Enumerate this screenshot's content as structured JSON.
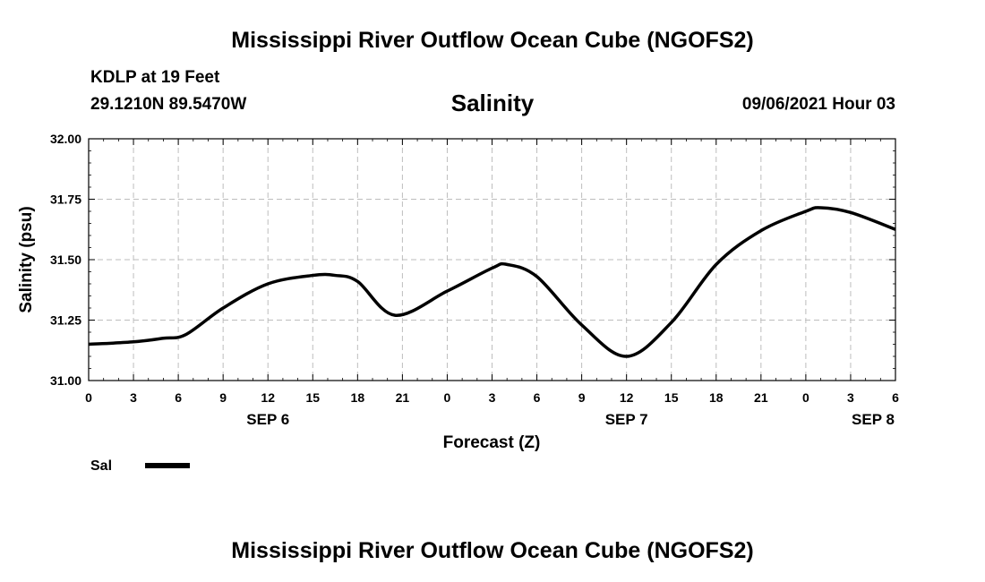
{
  "title_top": "Mississippi River Outflow Ocean Cube (NGOFS2)",
  "title_bottom": "Mississippi River Outflow Ocean Cube (NGOFS2)",
  "station": {
    "name": "KDLP at 19 Feet",
    "coords": "29.1210N  89.5470W"
  },
  "run_time": "09/06/2021 Hour 03",
  "legend": {
    "label": "Sal",
    "color": "#000000"
  },
  "chart_data": {
    "type": "line",
    "title": "Salinity",
    "xlabel": "Forecast (Z)",
    "ylabel": "Salinity (psu)",
    "x_unit": "hours from 0Z Sep 6",
    "xlim": [
      0,
      54
    ],
    "ylim": [
      31.0,
      32.0
    ],
    "grid": true,
    "x_ticks": [
      {
        "x": 0,
        "label": "0"
      },
      {
        "x": 3,
        "label": "3"
      },
      {
        "x": 6,
        "label": "6"
      },
      {
        "x": 9,
        "label": "9"
      },
      {
        "x": 12,
        "label": "12"
      },
      {
        "x": 15,
        "label": "15"
      },
      {
        "x": 18,
        "label": "18"
      },
      {
        "x": 21,
        "label": "21"
      },
      {
        "x": 24,
        "label": "0"
      },
      {
        "x": 27,
        "label": "3"
      },
      {
        "x": 30,
        "label": "6"
      },
      {
        "x": 33,
        "label": "9"
      },
      {
        "x": 36,
        "label": "12"
      },
      {
        "x": 39,
        "label": "15"
      },
      {
        "x": 42,
        "label": "18"
      },
      {
        "x": 45,
        "label": "21"
      },
      {
        "x": 48,
        "label": "0"
      },
      {
        "x": 51,
        "label": "3"
      },
      {
        "x": 54,
        "label": "6"
      }
    ],
    "day_labels": [
      {
        "x": 12,
        "label": "SEP 6"
      },
      {
        "x": 36,
        "label": "SEP 7"
      },
      {
        "x": 52.5,
        "label": "SEP 8"
      }
    ],
    "y_ticks": [
      "31.00",
      "31.25",
      "31.50",
      "31.75",
      "32.00"
    ],
    "series": [
      {
        "name": "Sal",
        "x": [
          0,
          3,
          5,
          6.5,
          9,
          12,
          15,
          16.5,
          18,
          20.5,
          24,
          27,
          28,
          30,
          33,
          36,
          39,
          42,
          45,
          48,
          49,
          51,
          54
        ],
        "y": [
          31.15,
          31.16,
          31.175,
          31.19,
          31.3,
          31.4,
          31.435,
          31.435,
          31.41,
          31.27,
          31.37,
          31.465,
          31.48,
          31.43,
          31.23,
          31.1,
          31.24,
          31.48,
          31.62,
          31.7,
          31.715,
          31.695,
          31.625
        ]
      }
    ]
  }
}
